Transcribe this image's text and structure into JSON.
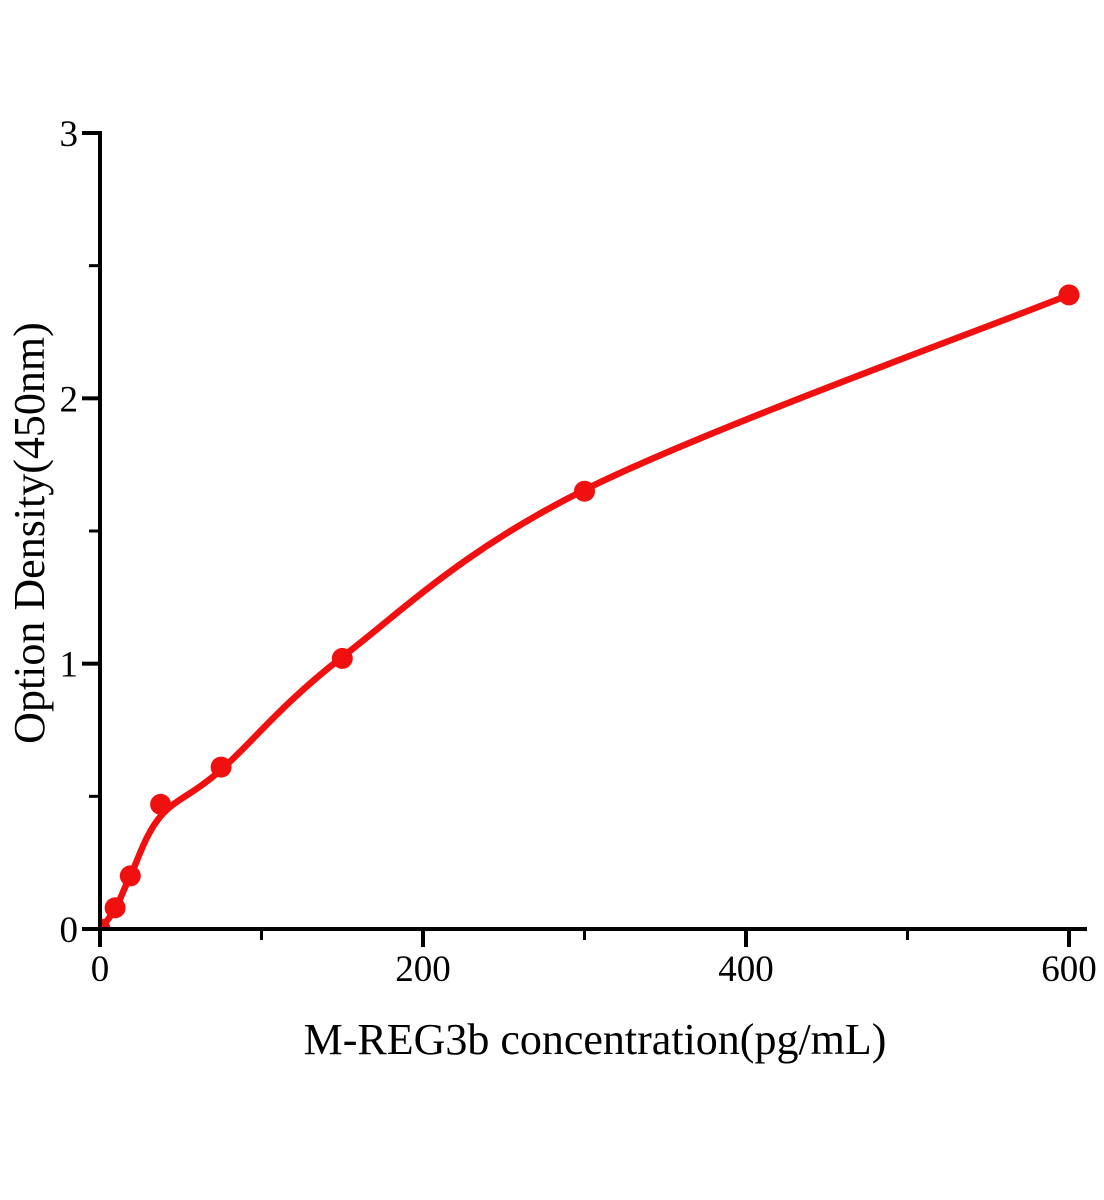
{
  "figure": {
    "background_color": "#ffffff",
    "axis_color": "#000000",
    "accent_color": "#f01010"
  },
  "chart_data": {
    "type": "scatter",
    "subtype": "elisa-standard-curve-with-fitted-line",
    "title": "",
    "xlabel": "M-REG3b concentration(pg/mL)",
    "ylabel": "Option Density(450nm)",
    "points": {
      "x": [
        0,
        9.375,
        18.75,
        37.5,
        75,
        150,
        300,
        600
      ],
      "y": [
        0,
        0.08,
        0.2,
        0.47,
        0.61,
        1.02,
        1.65,
        2.39
      ]
    },
    "fit_curve": {
      "x": [
        0,
        9.375,
        18.75,
        37.5,
        75,
        150,
        300,
        600
      ],
      "y": [
        0,
        0.075,
        0.2,
        0.425,
        0.6,
        1.025,
        1.655,
        2.39
      ]
    },
    "x_axis": {
      "range": [
        0,
        612
      ],
      "major_ticks": [
        0,
        200,
        400,
        600
      ],
      "minor_ticks": [
        100,
        300,
        500
      ]
    },
    "y_axis": {
      "range": [
        0,
        3
      ],
      "major_ticks": [
        0,
        1,
        2,
        3
      ],
      "minor_ticks": [
        0.5,
        1.5,
        2.5
      ]
    },
    "grid": false,
    "legend": "none",
    "marker": "filled-circle",
    "line_color": "#f01010",
    "marker_color": "#f01010"
  }
}
